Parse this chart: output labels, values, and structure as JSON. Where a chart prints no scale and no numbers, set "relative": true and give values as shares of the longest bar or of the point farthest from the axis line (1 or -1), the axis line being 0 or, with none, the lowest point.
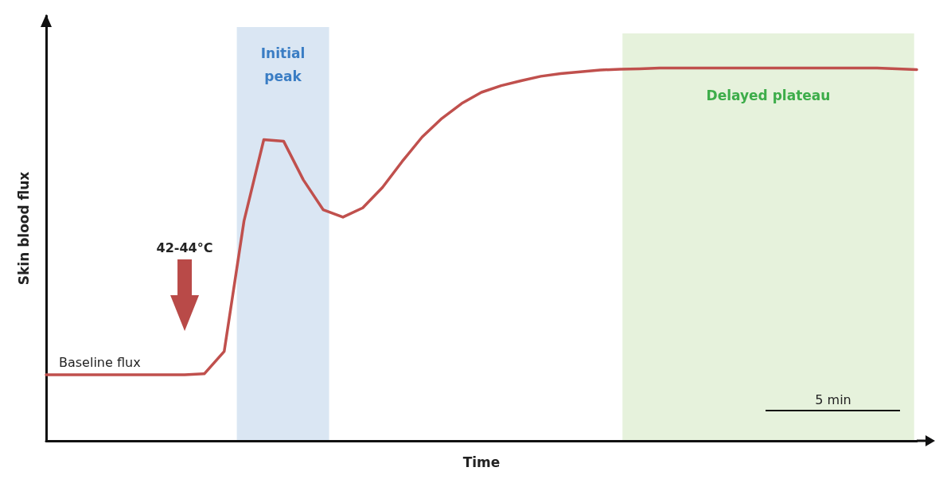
{
  "chart_data": {
    "type": "line",
    "relative": true,
    "xlabel": "Time",
    "ylabel": "Skin blood flux",
    "grid": false,
    "marker": "none",
    "line_style": "solid",
    "categories": [
      null,
      null,
      null,
      null,
      null,
      null,
      null,
      null,
      null,
      null,
      null,
      null,
      null,
      null,
      null,
      null,
      null,
      null,
      null,
      null,
      null,
      null,
      null,
      null,
      null,
      null,
      null,
      null,
      null,
      null,
      null,
      null,
      null,
      null,
      null,
      null,
      null,
      null,
      null,
      null,
      null,
      null,
      null,
      null,
      null
    ],
    "series": [
      {
        "color": "#c0504d",
        "values": [
          0.177,
          0.177,
          0.177,
          0.177,
          0.177,
          0.177,
          0.177,
          0.177,
          0.18,
          0.24,
          0.59,
          0.808,
          0.804,
          0.7,
          0.62,
          0.6,
          0.625,
          0.68,
          0.75,
          0.815,
          0.865,
          0.905,
          0.935,
          0.953,
          0.966,
          0.978,
          0.985,
          0.99,
          0.995,
          0.997,
          0.998,
          1,
          1,
          1,
          1,
          1,
          1,
          1,
          1,
          1,
          1,
          1,
          1,
          0.998,
          0.996
        ]
      }
    ],
    "annotations": [
      "Baseline flux",
      "42-44°C",
      "5 min",
      "Initial\npeak",
      "Delayed plateau"
    ]
  }
}
